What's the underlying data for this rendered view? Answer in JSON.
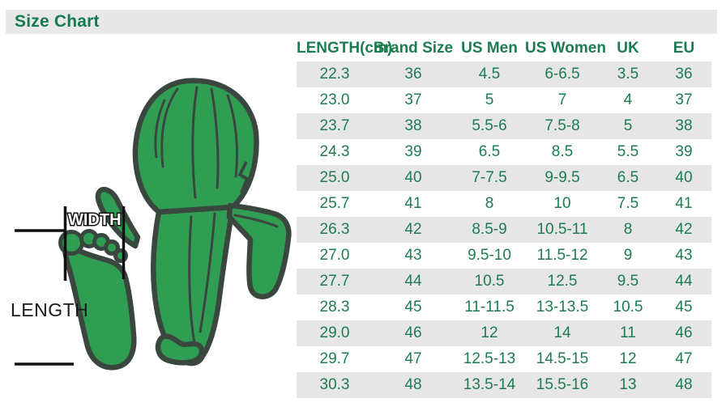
{
  "title": "Size Chart",
  "diagram": {
    "width_label": "WIDTH",
    "length_label": "LENGTH"
  },
  "chart_data": {
    "type": "table",
    "title": "Size Chart",
    "columns": [
      "LENGTH(cm)",
      "Brand Size",
      "US Men",
      "US Women",
      "UK",
      "EU"
    ],
    "rows": [
      [
        "22.3",
        "36",
        "4.5",
        "6-6.5",
        "3.5",
        "36"
      ],
      [
        "23.0",
        "37",
        "5",
        "7",
        "4",
        "37"
      ],
      [
        "23.7",
        "38",
        "5.5-6",
        "7.5-8",
        "5",
        "38"
      ],
      [
        "24.3",
        "39",
        "6.5",
        "8.5",
        "5.5",
        "39"
      ],
      [
        "25.0",
        "40",
        "7-7.5",
        "9-9.5",
        "6.5",
        "40"
      ],
      [
        "25.7",
        "41",
        "8",
        "10",
        "7.5",
        "41"
      ],
      [
        "26.3",
        "42",
        "8.5-9",
        "10.5-11",
        "8",
        "42"
      ],
      [
        "27.0",
        "43",
        "9.5-10",
        "11.5-12",
        "9",
        "43"
      ],
      [
        "27.7",
        "44",
        "10.5",
        "12.5",
        "9.5",
        "44"
      ],
      [
        "28.3",
        "45",
        "11-11.5",
        "13-13.5",
        "10.5",
        "45"
      ],
      [
        "29.0",
        "46",
        "12",
        "14",
        "11",
        "46"
      ],
      [
        "29.7",
        "47",
        "12.5-13",
        "14.5-15",
        "12",
        "47"
      ],
      [
        "30.3",
        "48",
        "13.5-14",
        "15.5-16",
        "13",
        "48"
      ]
    ]
  },
  "colors": {
    "accent_green": "#157a4f",
    "table_text_green": "#1e7c53",
    "titlebar_gray": "#e8e8e8",
    "stripe_gray": "#e6e6e6",
    "cactus_green": "#2f9e52",
    "outline_dark": "#3a473f",
    "measure_black": "#111111"
  }
}
